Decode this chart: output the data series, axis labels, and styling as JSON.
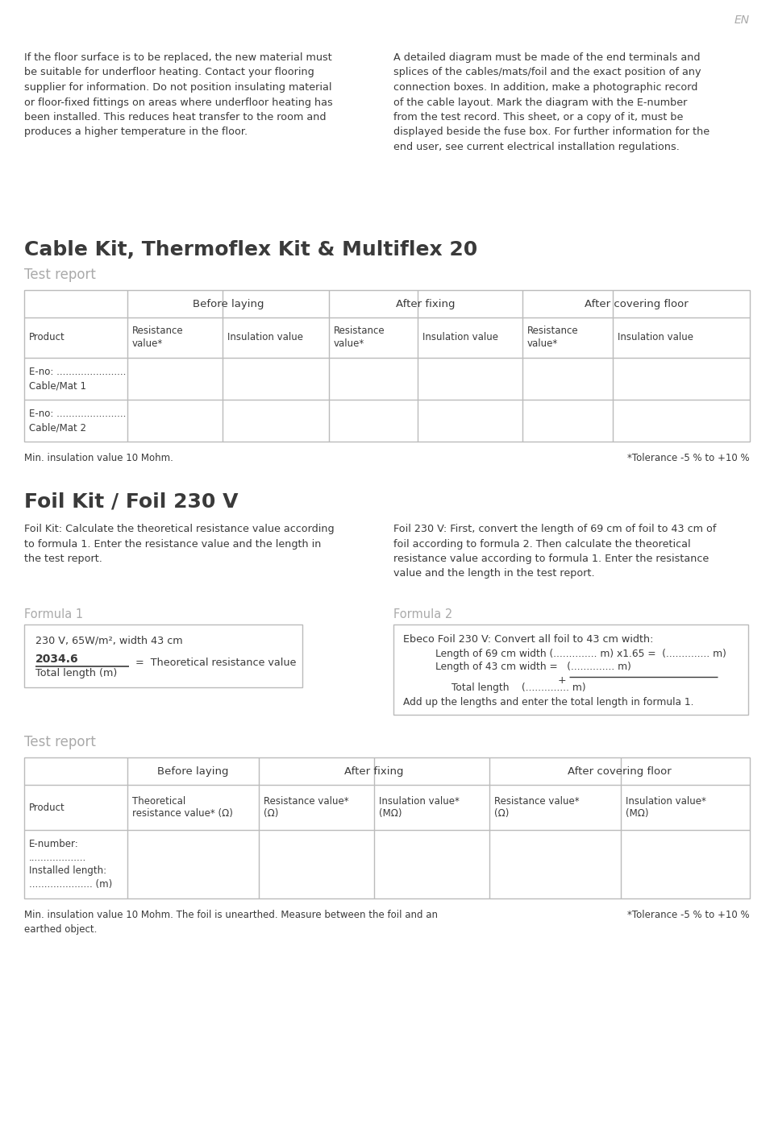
{
  "bg_color": "#ffffff",
  "text_color": "#3a3a3a",
  "gray_color": "#aaaaaa",
  "border_color": "#bbbbbb",
  "en_text": "EN",
  "para1_left": "If the floor surface is to be replaced, the new material must\nbe suitable for underfloor heating. Contact your flooring\nsupplier for information. Do not position insulating material\nor floor-fixed fittings on areas where underfloor heating has\nbeen installed. This reduces heat transfer to the room and\nproduces a higher temperature in the floor.",
  "para1_right": "A detailed diagram must be made of the end terminals and\nsplices of the cables/mats/foil and the exact position of any\nconnection boxes. In addition, make a photographic record\nof the cable layout. Mark the diagram with the E-number\nfrom the test record. This sheet, or a copy of it, must be\ndisplayed beside the fuse box. For further information for the\nend user, see current electrical installation regulations.",
  "section1_title": "Cable Kit, Thermoflex Kit & Multiflex 20",
  "section1_subtitle": "Test report",
  "table1_footer_left": "Min. insulation value 10 Mohm.",
  "table1_footer_right": "*Tolerance -5 % to +10 %",
  "section2_title": "Foil Kit / Foil 230 V",
  "foil_left_text": "Foil Kit: Calculate the theoretical resistance value according\nto formula 1. Enter the resistance value and the length in\nthe test report.",
  "foil_right_text": "Foil 230 V: First, convert the length of 69 cm of foil to 43 cm of\nfoil according to formula 2. Then calculate the theoretical\nresistance value according to formula 1. Enter the resistance\nvalue and the length in the test report.",
  "formula1_label": "Formula 1",
  "formula1_line1": "230 V, 65W/m², width 43 cm",
  "formula1_fraction": "2034.6",
  "formula1_denom": "Total length (m)",
  "formula1_eq": "=  Theoretical resistance value",
  "formula2_label": "Formula 2",
  "formula2_title": "Ebeco Foil 230 V: Convert all foil to 43 cm width:",
  "formula2_line1": "Length of 69 cm width (.............. m) x1.65 =  (.............. m)",
  "formula2_line2": "Length of 43 cm width =   (.............. m)",
  "formula2_plus": "+",
  "formula2_line3": "Total length    (.............. m)",
  "formula2_footer": "Add up the lengths and enter the total length in formula 1.",
  "section3_subtitle": "Test report",
  "table2_footer_left": "Min. insulation value 10 Mohm. The foil is unearthed. Measure between the foil and an\nearthed object.",
  "table2_footer_right": "*Tolerance -5 % to +10 %"
}
